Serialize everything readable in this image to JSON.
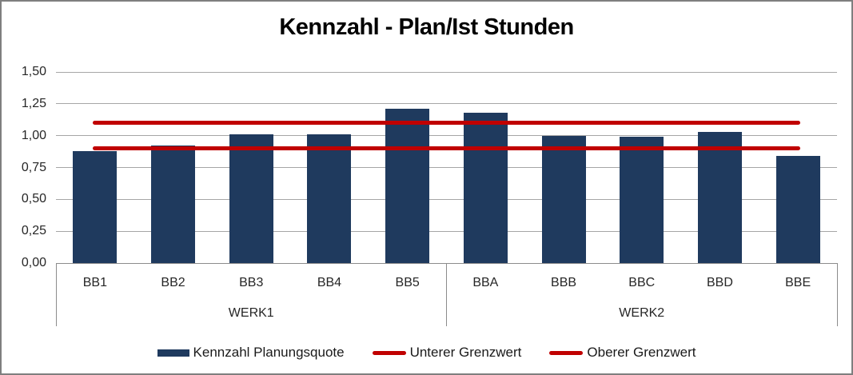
{
  "chart_data": {
    "type": "bar",
    "title": "Kennzahl - Plan/Ist Stunden",
    "categories": [
      "BB1",
      "BB2",
      "BB3",
      "BB4",
      "BB5",
      "BBA",
      "BBB",
      "BBC",
      "BBD",
      "BBE"
    ],
    "category_groups": [
      {
        "label": "WERK1",
        "start": 0,
        "end": 4
      },
      {
        "label": "WERK2",
        "start": 5,
        "end": 9
      }
    ],
    "series": [
      {
        "name": "Kennzahl Planungsquote",
        "type": "bar",
        "color": "#1F3A5E",
        "values": [
          0.88,
          0.92,
          1.01,
          1.01,
          1.21,
          1.18,
          1.0,
          0.99,
          1.03,
          0.84
        ]
      },
      {
        "name": "Unterer Grenzwert",
        "type": "line",
        "color": "#C00000",
        "value": 0.9
      },
      {
        "name": "Oberer Grenzwert",
        "type": "line",
        "color": "#C00000",
        "value": 1.1
      }
    ],
    "y_axis": {
      "min": 0,
      "max": 1.5,
      "step": 0.25,
      "tick_labels": [
        "0,00",
        "0,25",
        "0,50",
        "0,75",
        "1,00",
        "1,25",
        "1,50"
      ]
    },
    "grid": true,
    "legend_position": "bottom",
    "colors": {
      "bar": "#1F3A5E",
      "limit_line": "#C00000",
      "gridline": "#A6A6A6",
      "axis_line": "#8C8C8C",
      "text": "#262626",
      "title": "#000000",
      "frame_border": "#7F7F7F",
      "background": "#FFFFFF"
    }
  }
}
